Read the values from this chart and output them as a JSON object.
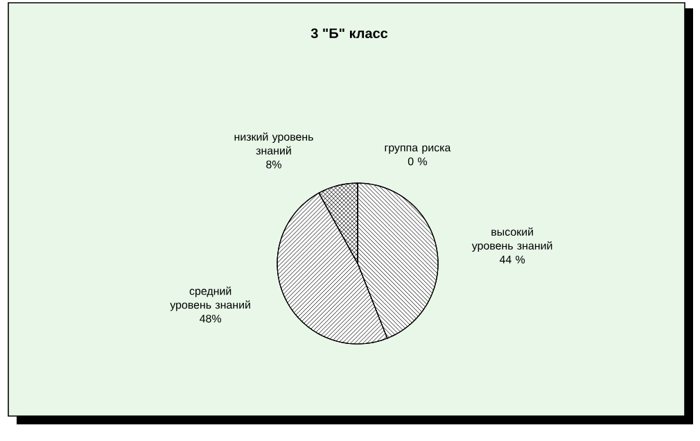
{
  "chart_data": {
    "type": "pie",
    "title": "3 \"Б\" класс",
    "categories": [
      "высокий уровень знаний",
      "средний уровень знаний",
      "низкий уровень знаний",
      "группа риска"
    ],
    "values": [
      44,
      48,
      8,
      0
    ],
    "value_labels": [
      "44 %",
      "48%",
      "8%",
      "0 %"
    ],
    "colors": [
      "#ffffff",
      "#ffffff",
      "#ffffff",
      "#ffffff"
    ]
  }
}
